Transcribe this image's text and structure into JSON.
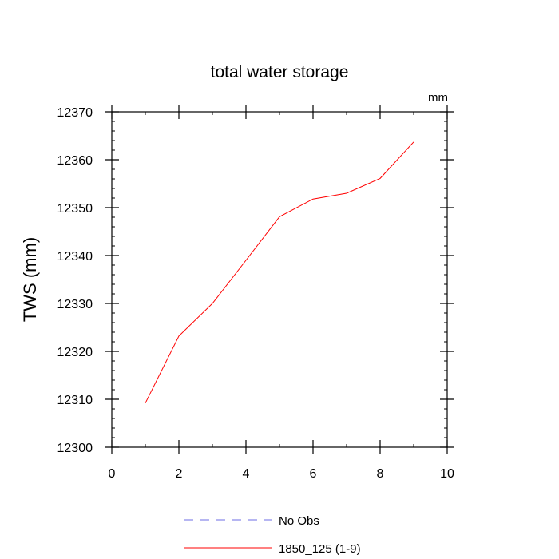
{
  "chart_data": {
    "type": "line",
    "title": "total water storage",
    "units_label": "mm",
    "xlabel": "",
    "ylabel": "TWS  (mm)",
    "xlim": [
      0,
      10
    ],
    "ylim": [
      12300,
      12370
    ],
    "xticks": [
      0,
      2,
      4,
      6,
      8,
      10
    ],
    "yticks": [
      12300,
      12310,
      12320,
      12330,
      12340,
      12350,
      12360,
      12370
    ],
    "x_minor_step": 1,
    "y_minor_step": 2,
    "series": [
      {
        "name": "No Obs",
        "color": "#6e6ee6",
        "style": "dashed",
        "x": [],
        "y": []
      },
      {
        "name": "1850_125 (1-9)",
        "color": "#ff0000",
        "style": "solid",
        "x": [
          1,
          2,
          3,
          4,
          5,
          6,
          7,
          8,
          9
        ],
        "y": [
          12309.2,
          12323.2,
          12330,
          12339,
          12348.1,
          12351.8,
          12353,
          12356.1,
          12363.7
        ]
      }
    ],
    "legend": {
      "placement": "bottom-center",
      "entries": [
        "No Obs",
        "1850_125 (1-9)"
      ]
    }
  }
}
